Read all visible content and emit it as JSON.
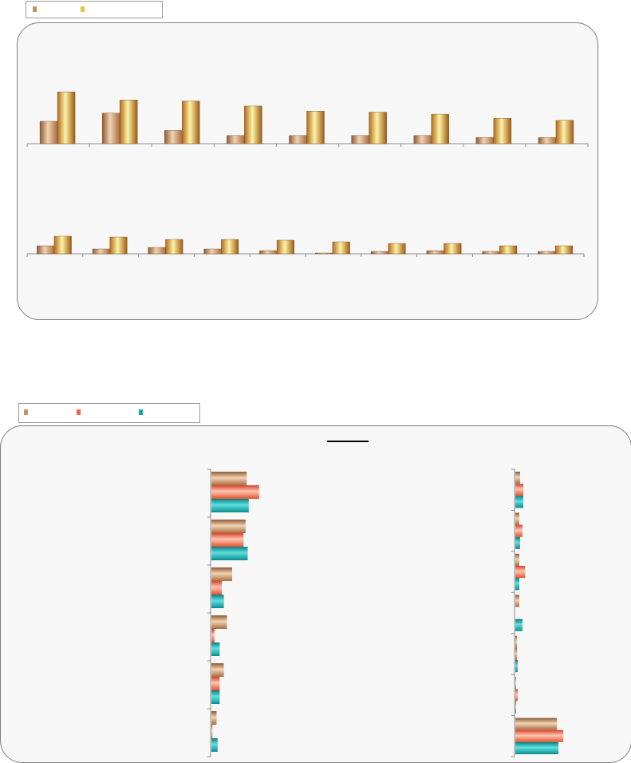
{
  "colors": {
    "tan": "#c98f5f",
    "gold": "#e9c23e",
    "salmon": "#f0654a",
    "teal": "#13a6a6",
    "axis": "#8c8c8c",
    "panel": "#f7f7f7"
  },
  "chart_data": [
    {
      "type": "bar",
      "orientation": "vertical",
      "title": "",
      "legend": {
        "placement": "top-left",
        "entries": [
          "",
          ""
        ]
      },
      "grid": false,
      "panels": [
        {
          "categories": [
            "",
            "",
            "",
            "",
            "",
            "",
            "",
            "",
            ""
          ],
          "series": [
            {
              "color": "tan",
              "values": [
                22,
                30,
                13,
                8,
                8,
                8,
                8,
                6,
                6
              ]
            },
            {
              "color": "gold",
              "values": [
                51,
                43,
                42,
                37,
                32,
                31,
                29,
                25,
                23
              ]
            }
          ],
          "ylim": [
            0,
            110
          ]
        },
        {
          "categories": [
            "",
            "",
            "",
            "",
            "",
            "",
            "",
            "",
            "",
            ""
          ],
          "series": [
            {
              "color": "tan",
              "values": [
                10,
                6,
                8,
                6,
                4,
                1,
                3,
                4,
                3,
                3
              ]
            },
            {
              "color": "gold",
              "values": [
                22,
                21,
                18,
                18,
                17,
                15,
                13,
                13,
                10,
                10
              ]
            }
          ],
          "ylim": [
            0,
            140
          ]
        }
      ]
    },
    {
      "type": "bar",
      "orientation": "horizontal",
      "title": "",
      "legend": {
        "placement": "top-left",
        "entries": [
          "",
          "",
          ""
        ]
      },
      "grid": false,
      "panels": [
        {
          "categories": [
            "",
            "",
            "",
            "",
            "",
            ""
          ],
          "series": [
            {
              "color": "tan",
              "values": [
                34,
                33,
                20,
                15,
                12,
                5
              ]
            },
            {
              "color": "salmon",
              "values": [
                46,
                31,
                10,
                3,
                8,
                1
              ]
            },
            {
              "color": "teal",
              "values": [
                36,
                35,
                12,
                8,
                8,
                6
              ]
            }
          ],
          "xlim": [
            0,
            100
          ]
        },
        {
          "categories": [
            "",
            "",
            "",
            "",
            "",
            "",
            ""
          ],
          "series": [
            {
              "color": "tan",
              "values": [
                6,
                5,
                5,
                5,
                2,
                1,
                52
              ]
            },
            {
              "color": "salmon",
              "values": [
                10,
                9,
                12,
                0,
                2,
                3,
                60
              ]
            },
            {
              "color": "teal",
              "values": [
                10,
                6,
                5,
                9,
                3,
                1,
                54
              ]
            }
          ],
          "xlim": [
            0,
            100
          ]
        }
      ]
    }
  ]
}
